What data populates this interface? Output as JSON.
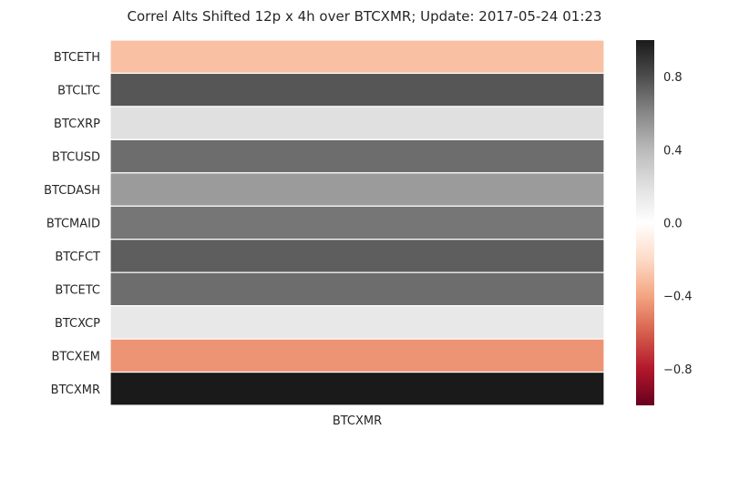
{
  "chart_data": {
    "type": "heatmap",
    "title": "Correl Alts Shifted 12p x 4h over BTCXMR; Update: 2017-05-24 01:23",
    "columns": [
      "BTCXMR"
    ],
    "rows": [
      "BTCETH",
      "BTCLTC",
      "BTCXRP",
      "BTCUSD",
      "BTCDASH",
      "BTCMAID",
      "BTCFCT",
      "BTCETC",
      "BTCXCP",
      "BTCXEM",
      "BTCXMR"
    ],
    "values": [
      [
        -0.3
      ],
      [
        0.77
      ],
      [
        0.2
      ],
      [
        0.69
      ],
      [
        0.52
      ],
      [
        0.66
      ],
      [
        0.74
      ],
      [
        0.69
      ],
      [
        0.15
      ],
      [
        -0.45
      ],
      [
        1.0
      ]
    ],
    "vmin": -1.0,
    "vmax": 1.0,
    "colormap": "RdGy",
    "colorbar_ticks": [
      "0.8",
      "0.4",
      "0.0",
      "−0.4",
      "−0.8"
    ],
    "colorbar_tick_values": [
      0.8,
      0.4,
      0.0,
      -0.4,
      -0.8
    ],
    "xlabel": "",
    "ylabel": "",
    "grid": false
  }
}
